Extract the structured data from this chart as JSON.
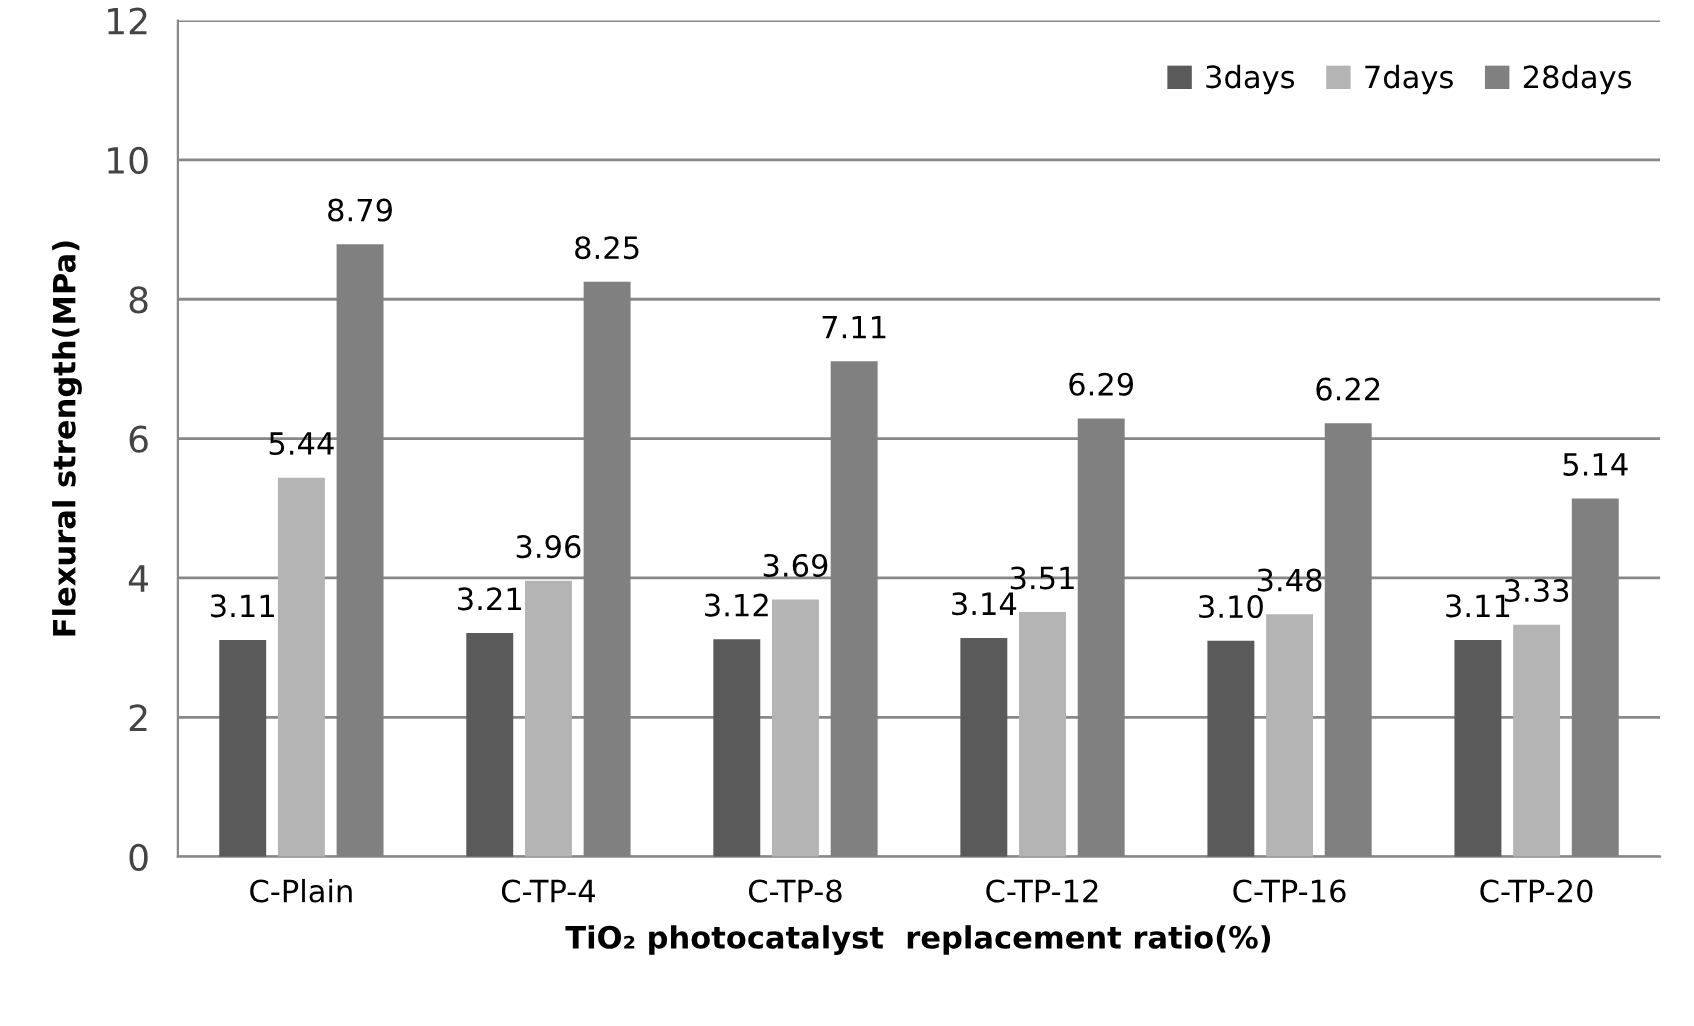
{
  "chart_data": {
    "type": "bar",
    "xlabel": "TiO₂ photocatalyst  replacement ratio(%)",
    "ylabel": "Flexural strength(MPa)",
    "categories": [
      "C-Plain",
      "C-TP-4",
      "C-TP-8",
      "C-TP-12",
      "C-TP-16",
      "C-TP-20"
    ],
    "series": [
      {
        "name": "3days",
        "color": "#5a5a5a",
        "values": [
          3.11,
          3.21,
          3.12,
          3.14,
          3.1,
          3.11
        ],
        "value_labels": [
          "3.11",
          "3.21",
          "3.12",
          "3.14",
          "3.10",
          "3.11"
        ]
      },
      {
        "name": "7days",
        "color": "#b4b4b4",
        "values": [
          5.44,
          3.96,
          3.69,
          3.51,
          3.48,
          3.33
        ],
        "value_labels": [
          "5.44",
          "3.96",
          "3.69",
          "3.51",
          "3.48",
          "3.33"
        ]
      },
      {
        "name": "28days",
        "color": "#808080",
        "values": [
          8.79,
          8.25,
          7.11,
          6.29,
          6.22,
          5.14
        ],
        "value_labels": [
          "8.79",
          "8.25",
          "7.11",
          "6.29",
          "6.22",
          "5.14"
        ]
      }
    ],
    "ylim": [
      0,
      12
    ],
    "yticks": [
      0,
      2,
      4,
      6,
      8,
      10,
      12
    ],
    "grid": "y",
    "legend": "top right"
  }
}
